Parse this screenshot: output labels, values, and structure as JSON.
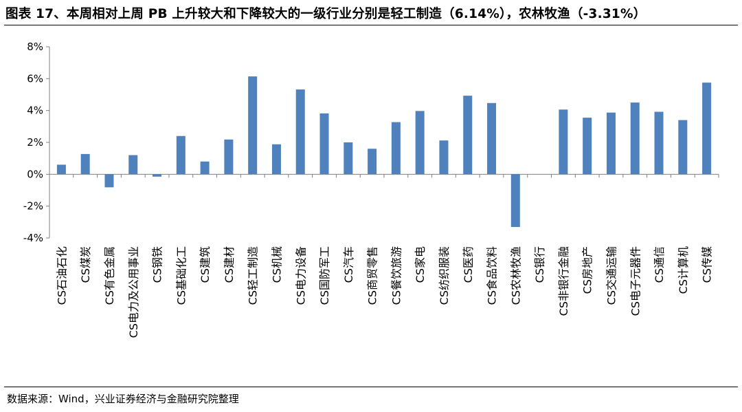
{
  "title": "图表 17、本周相对上周 PB 上升较大和下降较大的一级行业分别是轻工制造（6.14%），农林牧渔（-3.31%）",
  "source": "数据来源：Wind，兴业证券经济与金融研究院整理",
  "chart_data": {
    "type": "bar",
    "categories": [
      "CS石油石化",
      "CS煤炭",
      "CS有色金属",
      "CS电力及公用事业",
      "CS钢铁",
      "CS基础化工",
      "CS建筑",
      "CS建材",
      "CS轻工制造",
      "CS机械",
      "CS电力设备",
      "CS国防军工",
      "CS汽车",
      "CS商贸零售",
      "CS餐饮旅游",
      "CS家电",
      "CS纺织服装",
      "CS医药",
      "CS食品饮料",
      "CS农林牧渔",
      "CS银行",
      "CS非银行金融",
      "CS房地产",
      "CS交通运输",
      "CS电子元器件",
      "CS通信",
      "CS计算机",
      "CS传媒"
    ],
    "values": [
      0.6,
      1.27,
      -0.82,
      1.2,
      -0.15,
      2.4,
      0.8,
      2.18,
      6.14,
      1.88,
      5.32,
      3.82,
      2.0,
      1.6,
      3.27,
      3.97,
      2.12,
      4.93,
      4.47,
      -3.31,
      0.0,
      4.06,
      3.55,
      3.87,
      4.5,
      3.92,
      3.4,
      5.75
    ],
    "yticks": [
      "8%",
      "6%",
      "4%",
      "2%",
      "0%",
      "-2%",
      "-4%"
    ],
    "ylim": [
      -4,
      8
    ],
    "bar_color": "#4f81bd",
    "grid": false,
    "legend": false
  }
}
